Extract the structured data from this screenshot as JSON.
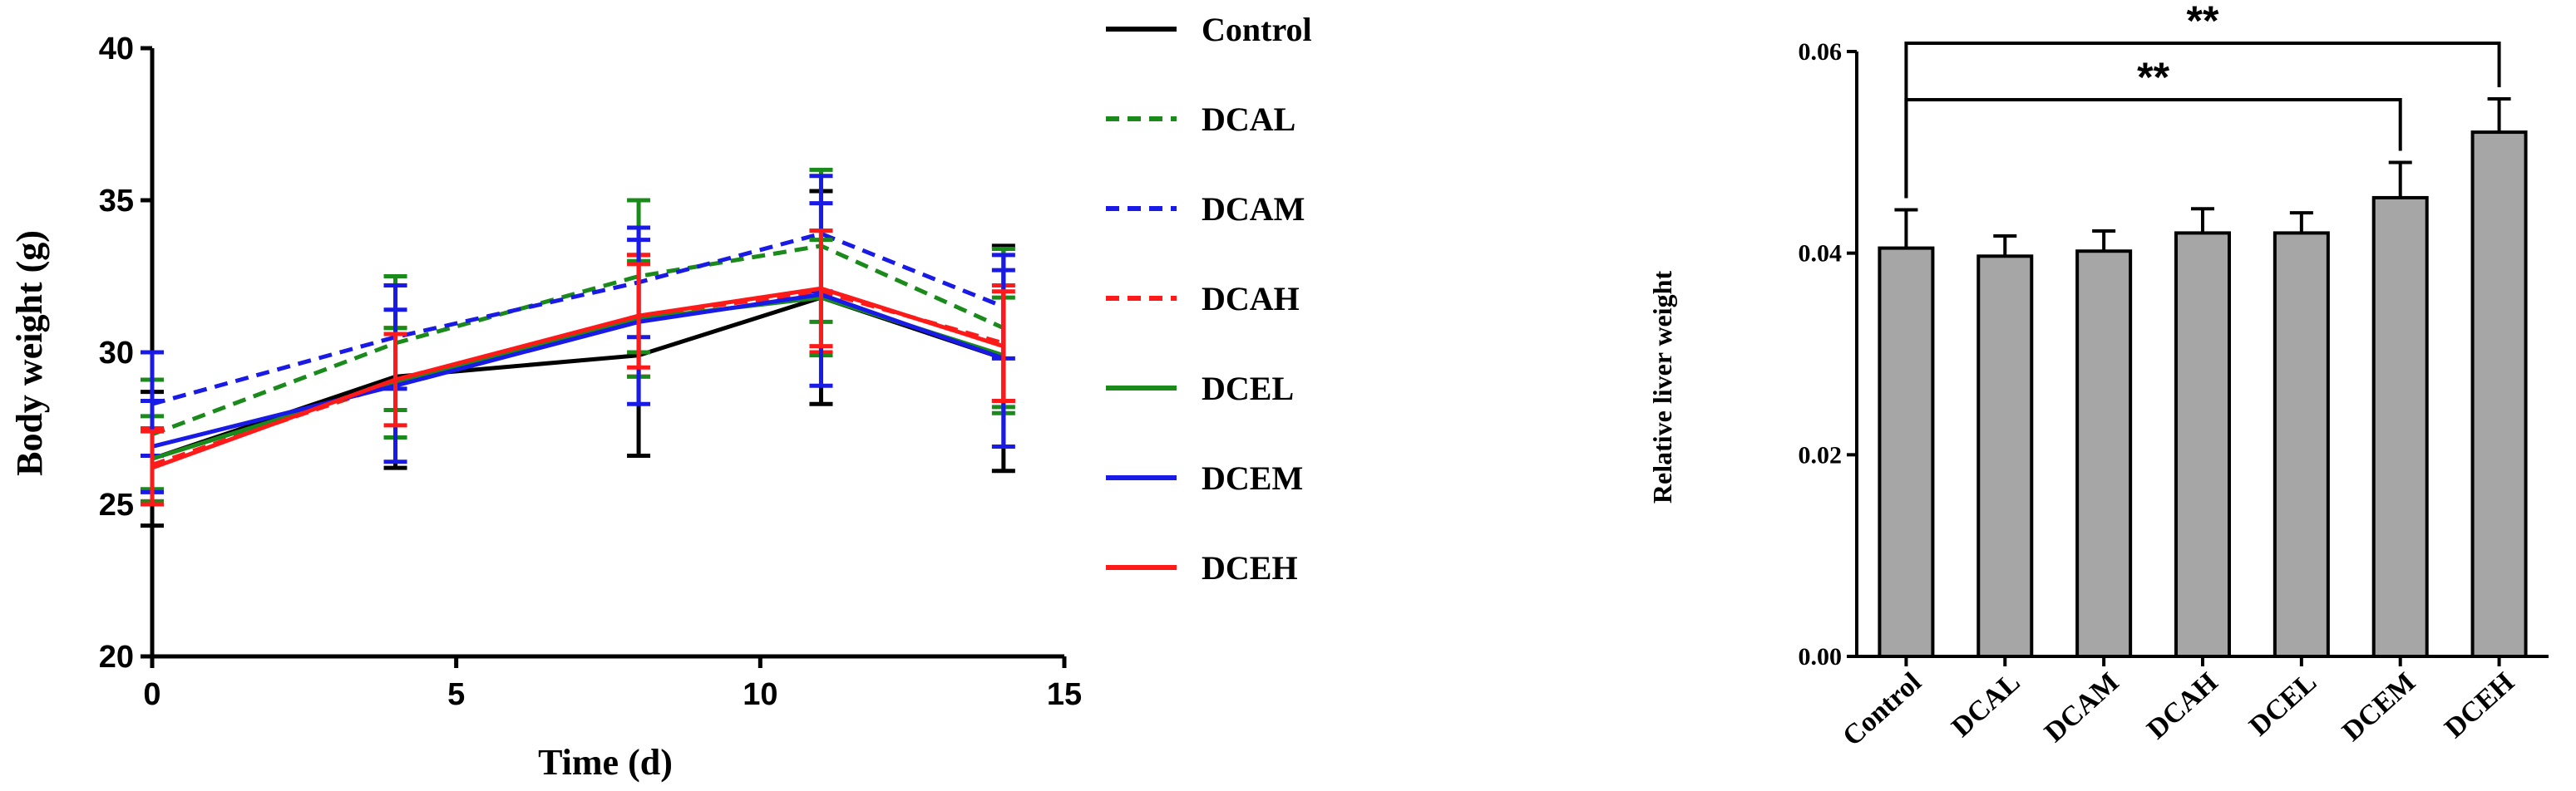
{
  "chart_data": [
    {
      "type": "line",
      "xlabel": "Time (d)",
      "ylabel": "Body weight (g)",
      "xlim": [
        0,
        15
      ],
      "ylim": [
        20,
        40
      ],
      "xticks": [
        0,
        5,
        10,
        15
      ],
      "yticks": [
        20,
        25,
        30,
        35,
        40
      ],
      "x": [
        0,
        4,
        8,
        11,
        14
      ],
      "legend_position": "top-right-outside",
      "series": [
        {
          "name": "Control",
          "color": "#000000",
          "dashed": false,
          "values": [
            26.5,
            29.2,
            29.9,
            31.8,
            29.8
          ],
          "errors": [
            2.2,
            3.0,
            3.3,
            3.5,
            3.7
          ]
        },
        {
          "name": "DCAL",
          "color": "#1a8a1a",
          "dashed": true,
          "values": [
            27.3,
            30.3,
            32.5,
            33.5,
            30.8
          ],
          "errors": [
            1.8,
            2.2,
            2.5,
            2.5,
            2.6
          ]
        },
        {
          "name": "DCAM",
          "color": "#1a1ae6",
          "dashed": true,
          "values": [
            28.3,
            30.5,
            32.3,
            33.9,
            31.5
          ],
          "errors": [
            1.7,
            1.7,
            1.8,
            1.9,
            1.7
          ]
        },
        {
          "name": "DCAH",
          "color": "#ff1a1a",
          "dashed": true,
          "values": [
            26.3,
            29.0,
            31.2,
            32.0,
            30.3
          ],
          "errors": [
            1.2,
            1.8,
            2.0,
            2.0,
            1.9
          ]
        },
        {
          "name": "DCEL",
          "color": "#1a8a1a",
          "dashed": false,
          "values": [
            26.5,
            29.0,
            31.1,
            31.8,
            29.9
          ],
          "errors": [
            1.4,
            1.8,
            1.9,
            1.9,
            1.9
          ]
        },
        {
          "name": "DCEM",
          "color": "#1a1ae6",
          "dashed": false,
          "values": [
            26.9,
            28.9,
            31.0,
            31.9,
            29.8
          ],
          "errors": [
            1.5,
            2.5,
            2.7,
            3.0,
            2.9
          ]
        },
        {
          "name": "DCEH",
          "color": "#ff1a1a",
          "dashed": false,
          "values": [
            26.2,
            29.1,
            31.2,
            32.1,
            30.2
          ],
          "errors": [
            1.2,
            1.5,
            1.7,
            1.9,
            1.8
          ]
        }
      ]
    },
    {
      "type": "bar",
      "categories": [
        "Control",
        "DCAL",
        "DCAM",
        "DCAH",
        "DCEL",
        "DCEM",
        "DCEH"
      ],
      "values": [
        0.0405,
        0.0397,
        0.0402,
        0.042,
        0.042,
        0.0455,
        0.052
      ],
      "errors": [
        0.0038,
        0.002,
        0.002,
        0.0024,
        0.002,
        0.0035,
        0.0033
      ],
      "ylabel": "Relative liver weight",
      "xlabel": "",
      "ylim": [
        0,
        0.06
      ],
      "yticks": [
        "0.00",
        "0.02",
        "0.04",
        "0.06"
      ],
      "bar_color": "#a6a6a6",
      "significance": [
        {
          "from": "Control",
          "to": "DCEH",
          "label": "**"
        },
        {
          "from": "Control",
          "to": "DCEM",
          "label": "**"
        }
      ]
    }
  ]
}
